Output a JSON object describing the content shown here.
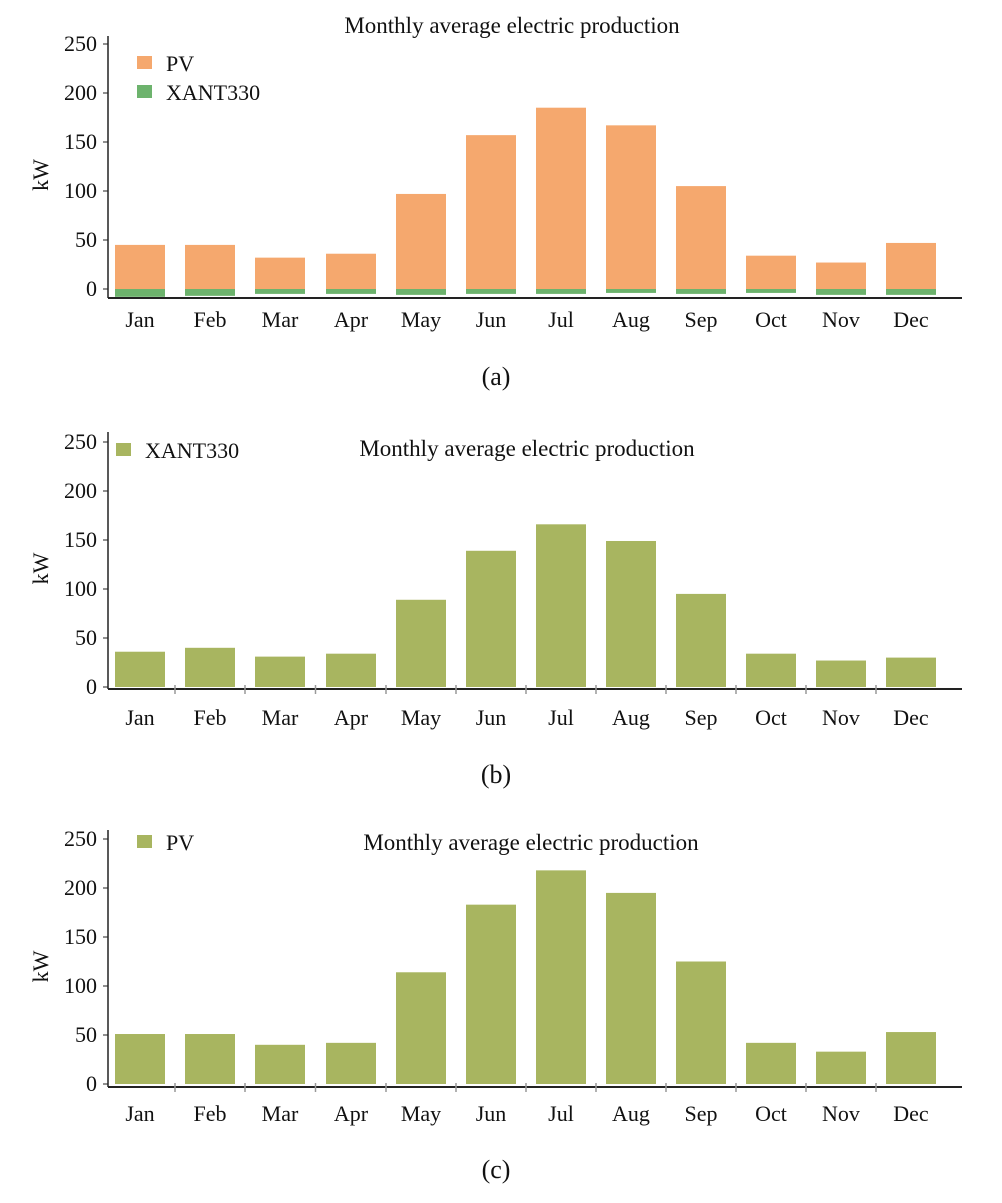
{
  "colors": {
    "pv_orange": "#f5a86e",
    "xant_green": "#6db36d",
    "olive": "#a8b560",
    "axis": "#222222"
  },
  "chart_data": [
    {
      "type": "bar",
      "stacked": true,
      "title": "Monthly average electric production",
      "ylabel": "kW",
      "xlabel": "",
      "caption": "(a)",
      "ylim": [
        0,
        250
      ],
      "yticks": [
        "250",
        "200",
        "150",
        "100",
        "50",
        "0"
      ],
      "categories": [
        "Jan",
        "Feb",
        "Mar",
        "Apr",
        "May",
        "Jun",
        "Jul",
        "Aug",
        "Sep",
        "Oct",
        "Nov",
        "Dec"
      ],
      "legend_position": "top-left",
      "series": [
        {
          "name": "PV",
          "color": "#f5a86e",
          "values": [
            45,
            45,
            32,
            36,
            97,
            157,
            185,
            167,
            105,
            34,
            27,
            47
          ]
        },
        {
          "name": "XANT330",
          "color": "#6db36d",
          "values": [
            -8,
            -7,
            -5,
            -5,
            -6,
            -5,
            -5,
            -4,
            -5,
            -4,
            -6,
            -6
          ]
        }
      ]
    },
    {
      "type": "bar",
      "title": "Monthly average electric production",
      "ylabel": "kW",
      "xlabel": "",
      "caption": "(b)",
      "ylim": [
        0,
        250
      ],
      "yticks": [
        "250",
        "200",
        "150",
        "100",
        "50",
        "0"
      ],
      "categories": [
        "Jan",
        "Feb",
        "Mar",
        "Apr",
        "May",
        "Jun",
        "Jul",
        "Aug",
        "Sep",
        "Oct",
        "Nov",
        "Dec"
      ],
      "legend_position": "top-left",
      "series": [
        {
          "name": "XANT330",
          "color": "#a8b560",
          "values": [
            36,
            40,
            31,
            34,
            89,
            139,
            166,
            149,
            95,
            34,
            27,
            30
          ]
        }
      ]
    },
    {
      "type": "bar",
      "title": "Monthly average electric production",
      "ylabel": "kW",
      "xlabel": "",
      "caption": "(c)",
      "ylim": [
        0,
        250
      ],
      "yticks": [
        "250",
        "200",
        "150",
        "100",
        "50",
        "0"
      ],
      "categories": [
        "Jan",
        "Feb",
        "Mar",
        "Apr",
        "May",
        "Jun",
        "Jul",
        "Aug",
        "Sep",
        "Oct",
        "Nov",
        "Dec"
      ],
      "legend_position": "top-left",
      "series": [
        {
          "name": "PV",
          "color": "#a8b560",
          "values": [
            51,
            51,
            40,
            42,
            114,
            183,
            218,
            195,
            125,
            42,
            33,
            53
          ]
        }
      ]
    }
  ]
}
